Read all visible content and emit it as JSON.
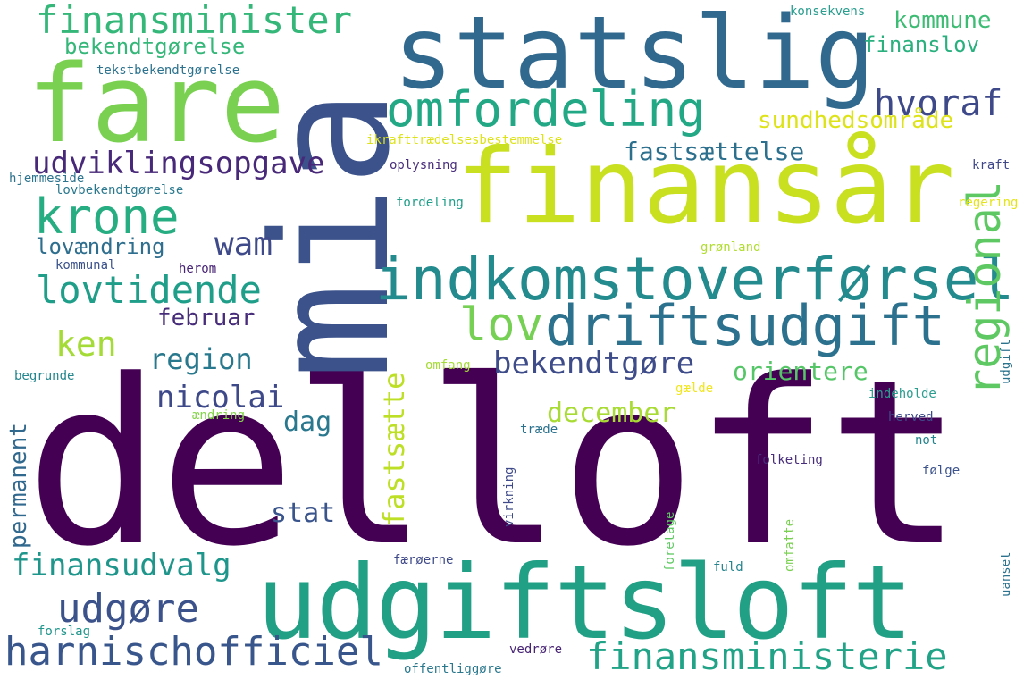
{
  "palette": {
    "dark_purple": "#440154",
    "indigo": "#3b528b",
    "slate_blue": "#31688e",
    "teal": "#21918c",
    "green_teal": "#2a9d8f",
    "green": "#35b779",
    "light_green": "#6ece58",
    "lime": "#7ad151",
    "yellow_green": "#b5de2b",
    "yellow": "#fde725",
    "background": "#ffffff"
  },
  "words": [
    {
      "key": "delloft",
      "text": "delloft",
      "color": "#440154"
    },
    {
      "key": "mia",
      "text": "mia",
      "color": "#3b528b"
    },
    {
      "key": "statslig",
      "text": "statslig",
      "color": "#31688e"
    },
    {
      "key": "fare",
      "text": "fare",
      "color": "#7ad151"
    },
    {
      "key": "finansaar",
      "text": "finansår",
      "color": "#c8e020"
    },
    {
      "key": "udgiftsloft",
      "text": "udgiftsloft",
      "color": "#21a085"
    },
    {
      "key": "indkomstoverforsel",
      "text": "indkomstoverførsel",
      "color": "#238a8d"
    },
    {
      "key": "driftsudgift",
      "text": "driftsudgift",
      "color": "#2c728e"
    },
    {
      "key": "omfordeling",
      "text": "omfordeling",
      "color": "#22a884"
    },
    {
      "key": "krone",
      "text": "krone",
      "color": "#26ad81"
    },
    {
      "key": "finansminister",
      "text": "finansminister",
      "color": "#35b779"
    },
    {
      "key": "finansministerie",
      "text": "finansministerie",
      "color": "#20a386"
    },
    {
      "key": "harnischofficiel",
      "text": "harnischofficiel",
      "color": "#39568c"
    },
    {
      "key": "regional",
      "text": "regional",
      "color": "#5ec962"
    },
    {
      "key": "lovtidende",
      "text": "lovtidende",
      "color": "#1f9e89"
    },
    {
      "key": "lov",
      "text": "lov",
      "color": "#75d054"
    },
    {
      "key": "ken",
      "text": "ken",
      "color": "#a5db36"
    },
    {
      "key": "udviklingsopgave",
      "text": "udviklingsopgave",
      "color": "#482878"
    },
    {
      "key": "hvoraf",
      "text": "hvoraf",
      "color": "#3e4989"
    },
    {
      "key": "wam",
      "text": "wam",
      "color": "#3e4a89"
    },
    {
      "key": "udgore",
      "text": "udgøre",
      "color": "#3b528b"
    },
    {
      "key": "finansudvalg",
      "text": "finansudvalg",
      "color": "#1f968b"
    },
    {
      "key": "bekendtgore",
      "text": "bekendtgøre",
      "color": "#3e4c8a"
    },
    {
      "key": "nicolai",
      "text": "nicolai",
      "color": "#3e4989"
    },
    {
      "key": "region",
      "text": "region",
      "color": "#29798e"
    },
    {
      "key": "fastsaettelse",
      "text": "fastsættelse",
      "color": "#2d708e"
    },
    {
      "key": "sundhedsomraade",
      "text": "sundhedsområde",
      "color": "#dde318"
    },
    {
      "key": "kommune",
      "text": "kommune",
      "color": "#3dbc74"
    },
    {
      "key": "finanslov",
      "text": "finanslov",
      "color": "#2ab07f"
    },
    {
      "key": "bekendtgorelse",
      "text": "bekendtgørelse",
      "color": "#35b779"
    },
    {
      "key": "december",
      "text": "december",
      "color": "#a8db34"
    },
    {
      "key": "orientere",
      "text": "orientere",
      "color": "#55c667"
    },
    {
      "key": "fastsaette",
      "text": "fastsætte",
      "color": "#bddf26"
    },
    {
      "key": "stat",
      "text": "stat",
      "color": "#3a548c"
    },
    {
      "key": "dag",
      "text": "dag",
      "color": "#2a788e"
    },
    {
      "key": "februar",
      "text": "februar",
      "color": "#472c7a"
    },
    {
      "key": "lovaendring",
      "text": "lovændring",
      "color": "#2e6e8e"
    },
    {
      "key": "permanent",
      "text": "permanent",
      "color": "#31688e"
    },
    {
      "key": "konsekvens",
      "text": "konsekvens",
      "color": "#2a9d8f"
    },
    {
      "key": "tekstbekendtgorelse",
      "text": "tekstbekendtgørelse",
      "color": "#2c728e"
    },
    {
      "key": "ikrafttraedelsesbestemmelse",
      "text": "ikrafttrædelsesbestemmelse",
      "color": "#dde318"
    },
    {
      "key": "oplysning",
      "text": "oplysning",
      "color": "#472d7b"
    },
    {
      "key": "kraft",
      "text": "kraft",
      "color": "#3f4788"
    },
    {
      "key": "hjemmeside",
      "text": "hjemmeside",
      "color": "#2c738e"
    },
    {
      "key": "lovbekendtgorelse",
      "text": "lovbekendtgørelse",
      "color": "#2a788e"
    },
    {
      "key": "fordeling",
      "text": "fordeling",
      "color": "#1f9e89"
    },
    {
      "key": "regering",
      "text": "regering",
      "color": "#e5e419"
    },
    {
      "key": "gronland",
      "text": "grønland",
      "color": "#b0dd2f"
    },
    {
      "key": "kommunal",
      "text": "kommunal",
      "color": "#3b528b"
    },
    {
      "key": "herom",
      "text": "herom",
      "color": "#482475"
    },
    {
      "key": "omfang",
      "text": "omfang",
      "color": "#a5db36"
    },
    {
      "key": "begrunde",
      "text": "begrunde",
      "color": "#24868e"
    },
    {
      "key": "aendring",
      "text": "ændring",
      "color": "#84d44b"
    },
    {
      "key": "traede",
      "text": "træde",
      "color": "#2c728e"
    },
    {
      "key": "gaelde",
      "text": "gælde",
      "color": "#f1e51d"
    },
    {
      "key": "indeholde",
      "text": "indeholde",
      "color": "#2a9d8f"
    },
    {
      "key": "herved",
      "text": "herved",
      "color": "#3e4989"
    },
    {
      "key": "not",
      "text": "not",
      "color": "#25838e"
    },
    {
      "key": "folketing",
      "text": "folketing",
      "color": "#472d7b"
    },
    {
      "key": "folge",
      "text": "følge",
      "color": "#3b528b"
    },
    {
      "key": "udgift",
      "text": "udgift",
      "color": "#2c738e"
    },
    {
      "key": "virkning",
      "text": "virkning",
      "color": "#3e4a89"
    },
    {
      "key": "forslag",
      "text": "forslag",
      "color": "#1f968b"
    },
    {
      "key": "faeroerne",
      "text": "færøerne",
      "color": "#3e4989"
    },
    {
      "key": "fuld",
      "text": "fuld",
      "color": "#25858e"
    },
    {
      "key": "foretage",
      "text": "foretage",
      "color": "#5ec962"
    },
    {
      "key": "omfatte",
      "text": "omfatte",
      "color": "#7ad151"
    },
    {
      "key": "uanset",
      "text": "uanset",
      "color": "#2c728e"
    },
    {
      "key": "vedrore",
      "text": "vedrøre",
      "color": "#482475"
    },
    {
      "key": "offentliggore",
      "text": "offentliggøre",
      "color": "#2a788e"
    }
  ]
}
